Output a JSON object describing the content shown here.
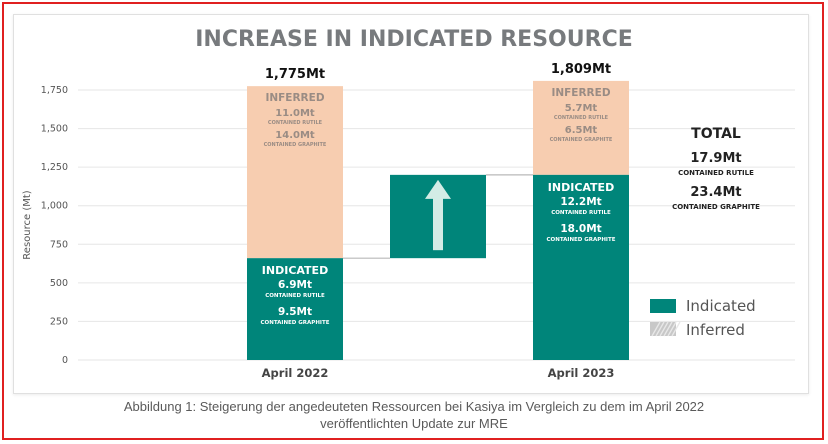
{
  "chart_data": {
    "type": "bar",
    "title": "INCREASE IN INDICATED RESOURCE",
    "ylabel": "Resource (Mt)",
    "xlabel": "",
    "ylim": [
      0,
      1750
    ],
    "yticks": [
      0,
      250,
      500,
      750,
      1000,
      1250,
      1500,
      1750
    ],
    "ytick_labels": [
      "0",
      "250",
      "500",
      "750",
      "1,000",
      "1,250",
      "1,500",
      "1,750"
    ],
    "categories": [
      "April 2022",
      "April 2023"
    ],
    "series": [
      {
        "name": "Indicated",
        "values": [
          660,
          1200
        ]
      },
      {
        "name": "Inferred",
        "values": [
          1115,
          609
        ]
      }
    ],
    "totals": [
      "1,775Mt",
      "1,809Mt"
    ],
    "bar_labels": [
      {
        "indicated": {
          "heading": "INDICATED",
          "rutile": "6.9Mt",
          "rutile_sub": "CONTAINED RUTILE",
          "graphite": "9.5Mt",
          "graphite_sub": "CONTAINED GRAPHITE"
        },
        "inferred": {
          "heading": "INFERRED",
          "rutile": "11.0Mt",
          "rutile_sub": "CONTAINED RUTILE",
          "graphite": "14.0Mt",
          "graphite_sub": "CONTAINED GRAPHITE"
        }
      },
      {
        "indicated": {
          "heading": "INDICATED",
          "rutile": "12.2Mt",
          "rutile_sub": "CONTAINED RUTILE",
          "graphite": "18.0Mt",
          "graphite_sub": "CONTAINED GRAPHITE"
        },
        "inferred": {
          "heading": "INFERRED",
          "rutile": "5.7Mt",
          "rutile_sub": "CONTAINED RUTILE",
          "graphite": "6.5Mt",
          "graphite_sub": "CONTAINED GRAPHITE"
        }
      }
    ],
    "increase": {
      "from": 660,
      "to": 1200
    },
    "total_box": {
      "heading": "TOTAL",
      "rutile": "17.9Mt",
      "rutile_sub": "CONTAINED RUTILE",
      "graphite": "23.4Mt",
      "graphite_sub": "CONTAINED GRAPHITE"
    },
    "legend": [
      "Indicated",
      "Inferred"
    ],
    "legend_position": "bottom-right"
  },
  "colors": {
    "indicated": "#00857a",
    "inferred": "#f7cdb0",
    "inferred_text": "#9a8c84",
    "arrow": "#d3ece6",
    "title": "#777a7d",
    "axis_text": "#555555",
    "grid": "#e6e6e6",
    "legend_inferred": "#c8c8c8"
  },
  "caption": {
    "line1": "Abbildung 1: Steigerung der angedeuteten Ressourcen bei Kasiya im Vergleich zu dem im April 2022",
    "line2": "veröffentlichten Update zur MRE"
  }
}
